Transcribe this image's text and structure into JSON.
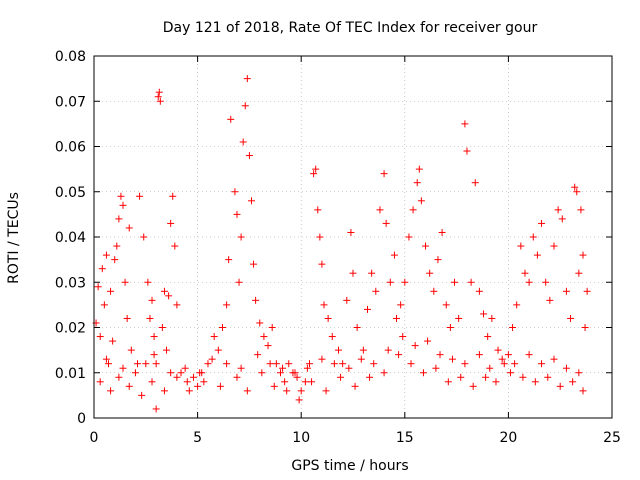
{
  "chart_data": {
    "type": "scatter",
    "title": "Day 121 of 2018, Rate Of TEC Index for receiver gour",
    "xlabel": "GPS time / hours",
    "ylabel": "ROTI / TECUs",
    "xlim": [
      0,
      25
    ],
    "ylim": [
      0,
      0.08
    ],
    "xticks": [
      0,
      5,
      10,
      15,
      20,
      25
    ],
    "xtick_labels": [
      "0",
      "5",
      "10",
      "15",
      "20",
      "25"
    ],
    "yticks": [
      0,
      0.01,
      0.02,
      0.03,
      0.04,
      0.05,
      0.06,
      0.07,
      0.08
    ],
    "ytick_labels": [
      "0",
      "0.01",
      "0.02",
      "0.03",
      "0.04",
      "0.05",
      "0.06",
      "0.07",
      "0.08"
    ],
    "grid": true,
    "marker": "+",
    "series": [
      {
        "name": "ROTI",
        "color": "#ff0000",
        "points": [
          [
            0.1,
            0.021
          ],
          [
            0.2,
            0.029
          ],
          [
            0.3,
            0.018
          ],
          [
            0.4,
            0.033
          ],
          [
            0.5,
            0.025
          ],
          [
            0.6,
            0.036
          ],
          [
            0.7,
            0.012
          ],
          [
            0.8,
            0.028
          ],
          [
            0.9,
            0.017
          ],
          [
            1.0,
            0.035
          ],
          [
            1.1,
            0.038
          ],
          [
            1.2,
            0.044
          ],
          [
            1.3,
            0.049
          ],
          [
            1.4,
            0.047
          ],
          [
            1.5,
            0.03
          ],
          [
            1.6,
            0.022
          ],
          [
            1.7,
            0.042
          ],
          [
            1.8,
            0.015
          ],
          [
            2.0,
            0.01
          ],
          [
            2.2,
            0.049
          ],
          [
            2.4,
            0.04
          ],
          [
            2.5,
            0.012
          ],
          [
            2.6,
            0.03
          ],
          [
            2.7,
            0.022
          ],
          [
            2.8,
            0.026
          ],
          [
            2.9,
            0.018
          ],
          [
            3.0,
            0.012
          ],
          [
            3.1,
            0.071
          ],
          [
            3.15,
            0.072
          ],
          [
            3.2,
            0.07
          ],
          [
            3.3,
            0.02
          ],
          [
            3.4,
            0.028
          ],
          [
            3.5,
            0.015
          ],
          [
            3.6,
            0.027
          ],
          [
            3.7,
            0.043
          ],
          [
            3.8,
            0.049
          ],
          [
            3.9,
            0.038
          ],
          [
            4.0,
            0.025
          ],
          [
            4.2,
            0.01
          ],
          [
            4.5,
            0.008
          ],
          [
            4.8,
            0.009
          ],
          [
            5.0,
            0.007
          ],
          [
            5.2,
            0.01
          ],
          [
            5.5,
            0.012
          ],
          [
            5.8,
            0.018
          ],
          [
            6.0,
            0.015
          ],
          [
            6.2,
            0.02
          ],
          [
            6.4,
            0.025
          ],
          [
            6.5,
            0.035
          ],
          [
            6.6,
            0.066
          ],
          [
            6.8,
            0.05
          ],
          [
            6.9,
            0.045
          ],
          [
            7.0,
            0.03
          ],
          [
            7.1,
            0.04
          ],
          [
            7.2,
            0.061
          ],
          [
            7.3,
            0.069
          ],
          [
            7.4,
            0.075
          ],
          [
            7.5,
            0.058
          ],
          [
            7.6,
            0.048
          ],
          [
            7.7,
            0.034
          ],
          [
            7.8,
            0.026
          ],
          [
            8.0,
            0.021
          ],
          [
            8.2,
            0.018
          ],
          [
            8.4,
            0.016
          ],
          [
            8.6,
            0.02
          ],
          [
            8.8,
            0.012
          ],
          [
            9.0,
            0.01
          ],
          [
            9.2,
            0.008
          ],
          [
            9.4,
            0.012
          ],
          [
            9.6,
            0.01
          ],
          [
            9.8,
            0.009
          ],
          [
            10.0,
            0.006
          ],
          [
            10.2,
            0.008
          ],
          [
            10.4,
            0.012
          ],
          [
            10.6,
            0.054
          ],
          [
            10.7,
            0.055
          ],
          [
            10.8,
            0.046
          ],
          [
            10.9,
            0.04
          ],
          [
            11.0,
            0.034
          ],
          [
            11.1,
            0.025
          ],
          [
            11.3,
            0.022
          ],
          [
            11.5,
            0.018
          ],
          [
            11.8,
            0.015
          ],
          [
            12.0,
            0.012
          ],
          [
            12.2,
            0.026
          ],
          [
            12.4,
            0.041
          ],
          [
            12.5,
            0.032
          ],
          [
            12.7,
            0.02
          ],
          [
            13.0,
            0.015
          ],
          [
            13.2,
            0.024
          ],
          [
            13.4,
            0.032
          ],
          [
            13.6,
            0.028
          ],
          [
            13.8,
            0.046
          ],
          [
            14.0,
            0.054
          ],
          [
            14.1,
            0.043
          ],
          [
            14.3,
            0.03
          ],
          [
            14.5,
            0.036
          ],
          [
            14.6,
            0.022
          ],
          [
            14.8,
            0.025
          ],
          [
            15.0,
            0.03
          ],
          [
            15.2,
            0.04
          ],
          [
            15.4,
            0.046
          ],
          [
            15.6,
            0.052
          ],
          [
            15.7,
            0.055
          ],
          [
            15.8,
            0.048
          ],
          [
            16.0,
            0.038
          ],
          [
            16.2,
            0.032
          ],
          [
            16.4,
            0.028
          ],
          [
            16.6,
            0.035
          ],
          [
            16.8,
            0.041
          ],
          [
            17.0,
            0.025
          ],
          [
            17.2,
            0.02
          ],
          [
            17.4,
            0.03
          ],
          [
            17.6,
            0.022
          ],
          [
            17.9,
            0.065
          ],
          [
            18.0,
            0.059
          ],
          [
            18.2,
            0.03
          ],
          [
            18.4,
            0.052
          ],
          [
            18.6,
            0.028
          ],
          [
            18.8,
            0.023
          ],
          [
            19.0,
            0.018
          ],
          [
            19.2,
            0.022
          ],
          [
            19.5,
            0.015
          ],
          [
            19.8,
            0.012
          ],
          [
            20.0,
            0.014
          ],
          [
            20.2,
            0.02
          ],
          [
            20.4,
            0.025
          ],
          [
            20.6,
            0.038
          ],
          [
            20.8,
            0.032
          ],
          [
            21.0,
            0.03
          ],
          [
            21.2,
            0.04
          ],
          [
            21.4,
            0.036
          ],
          [
            21.6,
            0.043
          ],
          [
            21.8,
            0.03
          ],
          [
            22.0,
            0.026
          ],
          [
            22.2,
            0.038
          ],
          [
            22.4,
            0.046
          ],
          [
            22.6,
            0.044
          ],
          [
            22.8,
            0.028
          ],
          [
            23.0,
            0.022
          ],
          [
            23.2,
            0.051
          ],
          [
            23.3,
            0.05
          ],
          [
            23.4,
            0.032
          ],
          [
            23.5,
            0.046
          ],
          [
            23.6,
            0.036
          ],
          [
            23.7,
            0.02
          ],
          [
            23.8,
            0.028
          ],
          [
            0.3,
            0.008
          ],
          [
            0.8,
            0.006
          ],
          [
            1.2,
            0.009
          ],
          [
            1.7,
            0.007
          ],
          [
            2.3,
            0.005
          ],
          [
            2.8,
            0.008
          ],
          [
            3.0,
            0.002
          ],
          [
            3.4,
            0.006
          ],
          [
            4.0,
            0.009
          ],
          [
            4.6,
            0.006
          ],
          [
            5.3,
            0.008
          ],
          [
            6.1,
            0.007
          ],
          [
            6.9,
            0.009
          ],
          [
            7.4,
            0.006
          ],
          [
            8.1,
            0.01
          ],
          [
            8.7,
            0.007
          ],
          [
            9.3,
            0.006
          ],
          [
            9.9,
            0.004
          ],
          [
            10.5,
            0.008
          ],
          [
            11.2,
            0.006
          ],
          [
            11.9,
            0.009
          ],
          [
            12.6,
            0.007
          ],
          [
            13.3,
            0.009
          ],
          [
            14.0,
            0.01
          ],
          [
            14.7,
            0.014
          ],
          [
            15.3,
            0.012
          ],
          [
            15.9,
            0.01
          ],
          [
            16.5,
            0.011
          ],
          [
            17.1,
            0.008
          ],
          [
            17.7,
            0.009
          ],
          [
            18.3,
            0.007
          ],
          [
            18.9,
            0.009
          ],
          [
            19.4,
            0.008
          ],
          [
            20.1,
            0.01
          ],
          [
            20.7,
            0.009
          ],
          [
            21.3,
            0.008
          ],
          [
            21.9,
            0.009
          ],
          [
            22.5,
            0.007
          ],
          [
            23.1,
            0.008
          ],
          [
            23.6,
            0.006
          ],
          [
            0.6,
            0.013
          ],
          [
            1.4,
            0.011
          ],
          [
            2.1,
            0.012
          ],
          [
            2.9,
            0.014
          ],
          [
            3.7,
            0.01
          ],
          [
            4.4,
            0.011
          ],
          [
            5.1,
            0.01
          ],
          [
            5.7,
            0.013
          ],
          [
            6.4,
            0.012
          ],
          [
            7.1,
            0.011
          ],
          [
            7.9,
            0.014
          ],
          [
            8.5,
            0.012
          ],
          [
            9.1,
            0.011
          ],
          [
            9.7,
            0.01
          ],
          [
            10.3,
            0.011
          ],
          [
            11.0,
            0.013
          ],
          [
            11.6,
            0.012
          ],
          [
            12.3,
            0.011
          ],
          [
            12.9,
            0.013
          ],
          [
            13.5,
            0.012
          ],
          [
            14.2,
            0.015
          ],
          [
            14.9,
            0.018
          ],
          [
            15.5,
            0.016
          ],
          [
            16.1,
            0.017
          ],
          [
            16.7,
            0.014
          ],
          [
            17.3,
            0.013
          ],
          [
            17.9,
            0.012
          ],
          [
            18.6,
            0.014
          ],
          [
            19.1,
            0.011
          ],
          [
            19.7,
            0.013
          ],
          [
            20.3,
            0.012
          ],
          [
            21.0,
            0.014
          ],
          [
            21.6,
            0.012
          ],
          [
            22.2,
            0.013
          ],
          [
            22.8,
            0.011
          ],
          [
            23.4,
            0.01
          ]
        ]
      }
    ]
  }
}
